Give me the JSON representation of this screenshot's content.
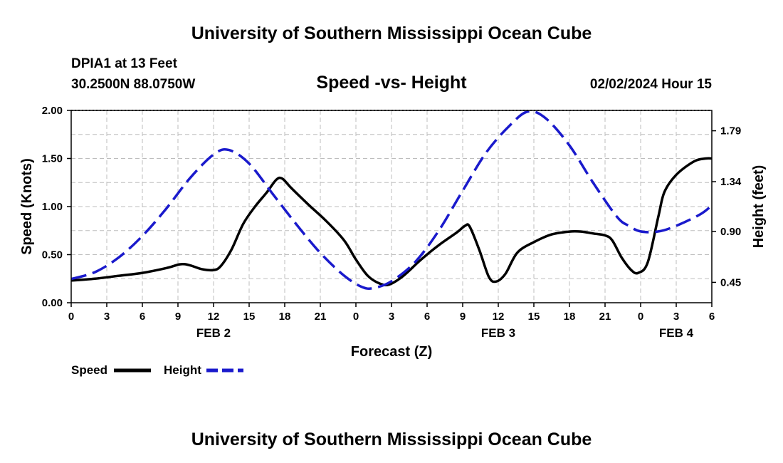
{
  "header": {
    "title": "University of Southern Mississippi Ocean Cube",
    "station": "DPIA1 at 13 Feet",
    "coords": "30.2500N  88.0750W",
    "datetime": "02/02/2024 Hour 15"
  },
  "footer": {
    "title": "University of Southern Mississippi Ocean Cube"
  },
  "chart_data": {
    "type": "line",
    "title": "Speed -vs- Height",
    "xlabel": "Forecast (Z)",
    "ylabel_left": "Speed (Knots)",
    "ylabel_right": "Height (feet)",
    "x_unit": "hours from FEB 2 00Z",
    "xlim": [
      0,
      54
    ],
    "ylim_left": [
      0,
      2.0
    ],
    "ylim_right": [
      0.27,
      1.97
    ],
    "grid": true,
    "x_ticks": [
      {
        "x": 0,
        "label": "0"
      },
      {
        "x": 3,
        "label": "3"
      },
      {
        "x": 6,
        "label": "6"
      },
      {
        "x": 9,
        "label": "9"
      },
      {
        "x": 12,
        "label": "12"
      },
      {
        "x": 15,
        "label": "15"
      },
      {
        "x": 18,
        "label": "18"
      },
      {
        "x": 21,
        "label": "21"
      },
      {
        "x": 24,
        "label": "0"
      },
      {
        "x": 27,
        "label": "3"
      },
      {
        "x": 30,
        "label": "6"
      },
      {
        "x": 33,
        "label": "9"
      },
      {
        "x": 36,
        "label": "12"
      },
      {
        "x": 39,
        "label": "15"
      },
      {
        "x": 42,
        "label": "18"
      },
      {
        "x": 45,
        "label": "21"
      },
      {
        "x": 48,
        "label": "0"
      },
      {
        "x": 51,
        "label": "3"
      },
      {
        "x": 54,
        "label": "6"
      }
    ],
    "date_labels": [
      {
        "x": 12,
        "label": "FEB 2"
      },
      {
        "x": 36,
        "label": "FEB 3"
      },
      {
        "x": 51,
        "label": "FEB 4"
      }
    ],
    "y_ticks_left": [
      {
        "v": 0.0,
        "label": "0.00"
      },
      {
        "v": 0.5,
        "label": "0.50"
      },
      {
        "v": 1.0,
        "label": "1.00"
      },
      {
        "v": 1.5,
        "label": "1.50"
      },
      {
        "v": 2.0,
        "label": "2.00"
      }
    ],
    "y_ticks_right": [
      {
        "v": 0.45,
        "label": "0.45"
      },
      {
        "v": 0.9,
        "label": "0.90"
      },
      {
        "v": 1.34,
        "label": "1.34"
      },
      {
        "v": 1.79,
        "label": "1.79"
      }
    ],
    "series": [
      {
        "name": "Speed",
        "axis": "left",
        "color": "#000000",
        "dash": "solid",
        "points": [
          [
            0,
            0.23
          ],
          [
            2,
            0.25
          ],
          [
            4,
            0.28
          ],
          [
            6,
            0.31
          ],
          [
            8,
            0.36
          ],
          [
            9.2,
            0.4
          ],
          [
            10,
            0.39
          ],
          [
            11,
            0.35
          ],
          [
            12,
            0.34
          ],
          [
            12.6,
            0.38
          ],
          [
            13.5,
            0.55
          ],
          [
            14.5,
            0.82
          ],
          [
            15.5,
            1.0
          ],
          [
            16.5,
            1.15
          ],
          [
            17.3,
            1.28
          ],
          [
            17.8,
            1.29
          ],
          [
            18.5,
            1.2
          ],
          [
            20,
            1.02
          ],
          [
            21.5,
            0.85
          ],
          [
            23,
            0.65
          ],
          [
            24,
            0.45
          ],
          [
            25,
            0.28
          ],
          [
            26,
            0.2
          ],
          [
            26.8,
            0.19
          ],
          [
            28,
            0.28
          ],
          [
            29.5,
            0.45
          ],
          [
            31,
            0.6
          ],
          [
            32.5,
            0.73
          ],
          [
            33.2,
            0.8
          ],
          [
            33.6,
            0.79
          ],
          [
            34.4,
            0.55
          ],
          [
            35.2,
            0.27
          ],
          [
            35.8,
            0.22
          ],
          [
            36.6,
            0.3
          ],
          [
            37.6,
            0.52
          ],
          [
            39,
            0.63
          ],
          [
            40.5,
            0.71
          ],
          [
            42,
            0.74
          ],
          [
            43,
            0.74
          ],
          [
            44,
            0.72
          ],
          [
            45,
            0.7
          ],
          [
            45.6,
            0.65
          ],
          [
            46.4,
            0.47
          ],
          [
            47.2,
            0.34
          ],
          [
            47.8,
            0.31
          ],
          [
            48.6,
            0.42
          ],
          [
            49.5,
            0.9
          ],
          [
            50,
            1.15
          ],
          [
            51,
            1.33
          ],
          [
            52.5,
            1.47
          ],
          [
            53.5,
            1.5
          ],
          [
            54,
            1.5
          ]
        ]
      },
      {
        "name": "Height",
        "axis": "right",
        "color": "#1a1acc",
        "dash": "dashed",
        "points": [
          [
            0,
            0.48
          ],
          [
            2,
            0.54
          ],
          [
            4,
            0.67
          ],
          [
            6,
            0.86
          ],
          [
            8,
            1.1
          ],
          [
            10,
            1.37
          ],
          [
            12,
            1.58
          ],
          [
            13.3,
            1.62
          ],
          [
            15,
            1.5
          ],
          [
            17,
            1.23
          ],
          [
            19,
            0.96
          ],
          [
            21,
            0.71
          ],
          [
            23,
            0.51
          ],
          [
            24.5,
            0.41
          ],
          [
            25.5,
            0.4
          ],
          [
            27,
            0.46
          ],
          [
            29,
            0.63
          ],
          [
            31,
            0.91
          ],
          [
            33,
            1.26
          ],
          [
            35,
            1.6
          ],
          [
            37,
            1.84
          ],
          [
            38.5,
            1.96
          ],
          [
            40,
            1.9
          ],
          [
            42,
            1.66
          ],
          [
            44,
            1.33
          ],
          [
            46,
            1.03
          ],
          [
            47,
            0.95
          ],
          [
            48,
            0.9
          ],
          [
            49.5,
            0.9
          ],
          [
            51,
            0.95
          ],
          [
            53,
            1.05
          ],
          [
            54,
            1.13
          ]
        ]
      }
    ],
    "legend": [
      {
        "label": "Speed",
        "color": "#000000",
        "dash": "solid"
      },
      {
        "label": "Height",
        "color": "#1a1acc",
        "dash": "dashed"
      }
    ]
  }
}
